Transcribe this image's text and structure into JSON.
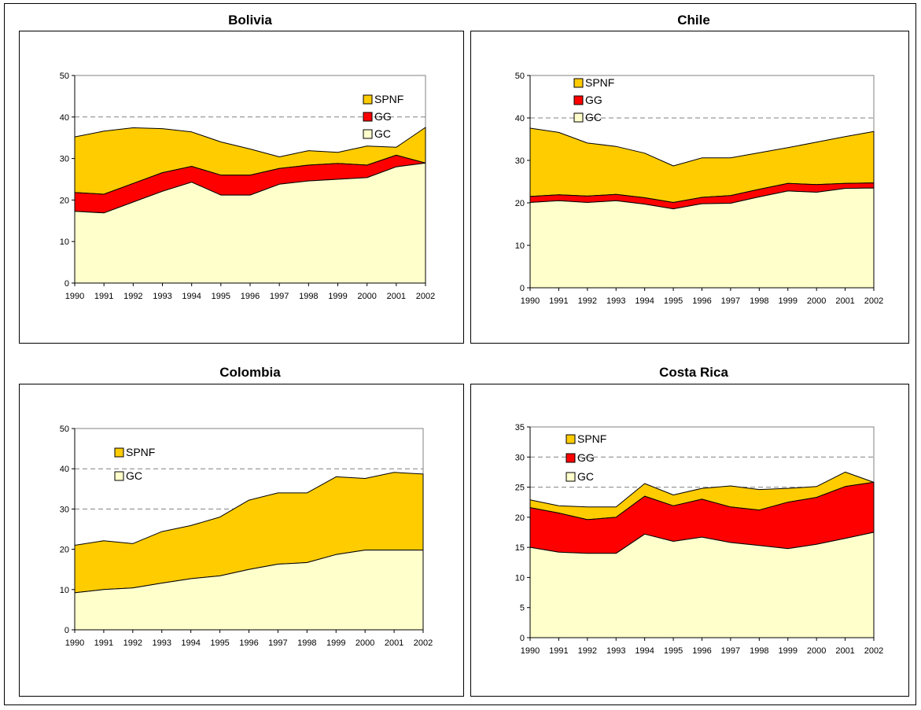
{
  "colors": {
    "SPNF": "#FFCC00",
    "GG": "#FF0000",
    "GC": "#FFFFCC",
    "outline": "#000000",
    "gridline": "#808080"
  },
  "chart_data": [
    {
      "type": "area",
      "title": "Bolivia",
      "x": [
        "1990",
        "1991",
        "1992",
        "1993",
        "1994",
        "1995",
        "1996",
        "1997",
        "1998",
        "1999",
        "2000",
        "2001",
        "2002"
      ],
      "ylim": [
        0,
        50
      ],
      "yticks": [
        0,
        10,
        20,
        30,
        40,
        50
      ],
      "grid": "dashed at 40",
      "legend": "top-right",
      "series": [
        {
          "name": "SPNF",
          "values": [
            13.4,
            15.2,
            13.4,
            10.6,
            8.3,
            8.0,
            6.3,
            2.8,
            3.5,
            2.7,
            4.6,
            1.9,
            8.6
          ]
        },
        {
          "name": "GG",
          "values": [
            4.5,
            4.5,
            4.5,
            4.5,
            3.8,
            4.8,
            4.8,
            3.8,
            3.8,
            3.8,
            3.0,
            2.8,
            0
          ]
        },
        {
          "name": "GC",
          "values": [
            17.3,
            16.9,
            19.5,
            22.1,
            24.3,
            21.2,
            21.2,
            23.8,
            24.6,
            25.0,
            25.4,
            28.0,
            28.9
          ]
        }
      ]
    },
    {
      "type": "area",
      "title": "Chile",
      "x": [
        "1990",
        "1991",
        "1992",
        "1993",
        "1994",
        "1995",
        "1996",
        "1997",
        "1998",
        "1999",
        "2000",
        "2001",
        "2002"
      ],
      "ylim": [
        0,
        50
      ],
      "yticks": [
        0,
        10,
        20,
        30,
        40,
        50
      ],
      "grid": "dashed at 40",
      "legend": "top-left",
      "series": [
        {
          "name": "SPNF",
          "values": [
            16.1,
            14.7,
            12.5,
            11.3,
            10.5,
            8.6,
            9.3,
            8.9,
            8.6,
            8.4,
            10.0,
            11.0,
            12.1
          ]
        },
        {
          "name": "GG",
          "values": [
            1.4,
            1.4,
            1.5,
            1.5,
            1.5,
            1.5,
            1.5,
            1.8,
            1.8,
            1.8,
            1.8,
            1.2,
            1.2
          ]
        },
        {
          "name": "GC",
          "values": [
            20.1,
            20.5,
            20.1,
            20.5,
            19.7,
            18.6,
            19.8,
            19.9,
            21.4,
            22.8,
            22.5,
            23.4,
            23.5
          ]
        }
      ]
    },
    {
      "type": "area",
      "title": "Colombia",
      "x": [
        "1990",
        "1991",
        "1992",
        "1993",
        "1994",
        "1995",
        "1996",
        "1997",
        "1998",
        "1999",
        "2000",
        "2001",
        "2002"
      ],
      "ylim": [
        0,
        50
      ],
      "yticks": [
        0,
        10,
        20,
        30,
        40,
        50
      ],
      "grid": "dashed at 30 and 40",
      "legend": "top-left",
      "series": [
        {
          "name": "SPNF",
          "values": [
            11.8,
            12.1,
            11.0,
            12.8,
            13.2,
            14.6,
            17.2,
            17.7,
            17.3,
            19.3,
            17.8,
            19.3,
            18.9
          ]
        },
        {
          "name": "GC",
          "values": [
            9.2,
            10.0,
            10.4,
            11.6,
            12.7,
            13.4,
            15.0,
            16.3,
            16.7,
            18.7,
            19.8,
            19.8,
            19.8
          ]
        }
      ]
    },
    {
      "type": "area",
      "title": "Costa Rica",
      "x": [
        "1990",
        "1991",
        "1992",
        "1993",
        "1994",
        "1995",
        "1996",
        "1997",
        "1998",
        "1999",
        "2000",
        "2001",
        "2002"
      ],
      "ylim": [
        0,
        35
      ],
      "yticks": [
        0,
        5,
        10,
        15,
        20,
        25,
        30,
        35
      ],
      "grid": "dashed at 25 and 30",
      "legend": "top-left",
      "series": [
        {
          "name": "SPNF",
          "values": [
            1.3,
            1.2,
            2.1,
            1.7,
            2.1,
            1.8,
            1.8,
            3.5,
            3.4,
            2.3,
            1.8,
            2.4,
            0
          ]
        },
        {
          "name": "GG",
          "values": [
            6.6,
            6.5,
            5.6,
            6.0,
            6.3,
            5.9,
            6.3,
            5.9,
            5.9,
            7.7,
            7.8,
            8.6,
            8.3
          ]
        },
        {
          "name": "GC",
          "values": [
            15.0,
            14.2,
            14.0,
            14.0,
            17.2,
            16.0,
            16.7,
            15.8,
            15.3,
            14.8,
            15.5,
            16.5,
            17.5
          ]
        }
      ]
    }
  ]
}
